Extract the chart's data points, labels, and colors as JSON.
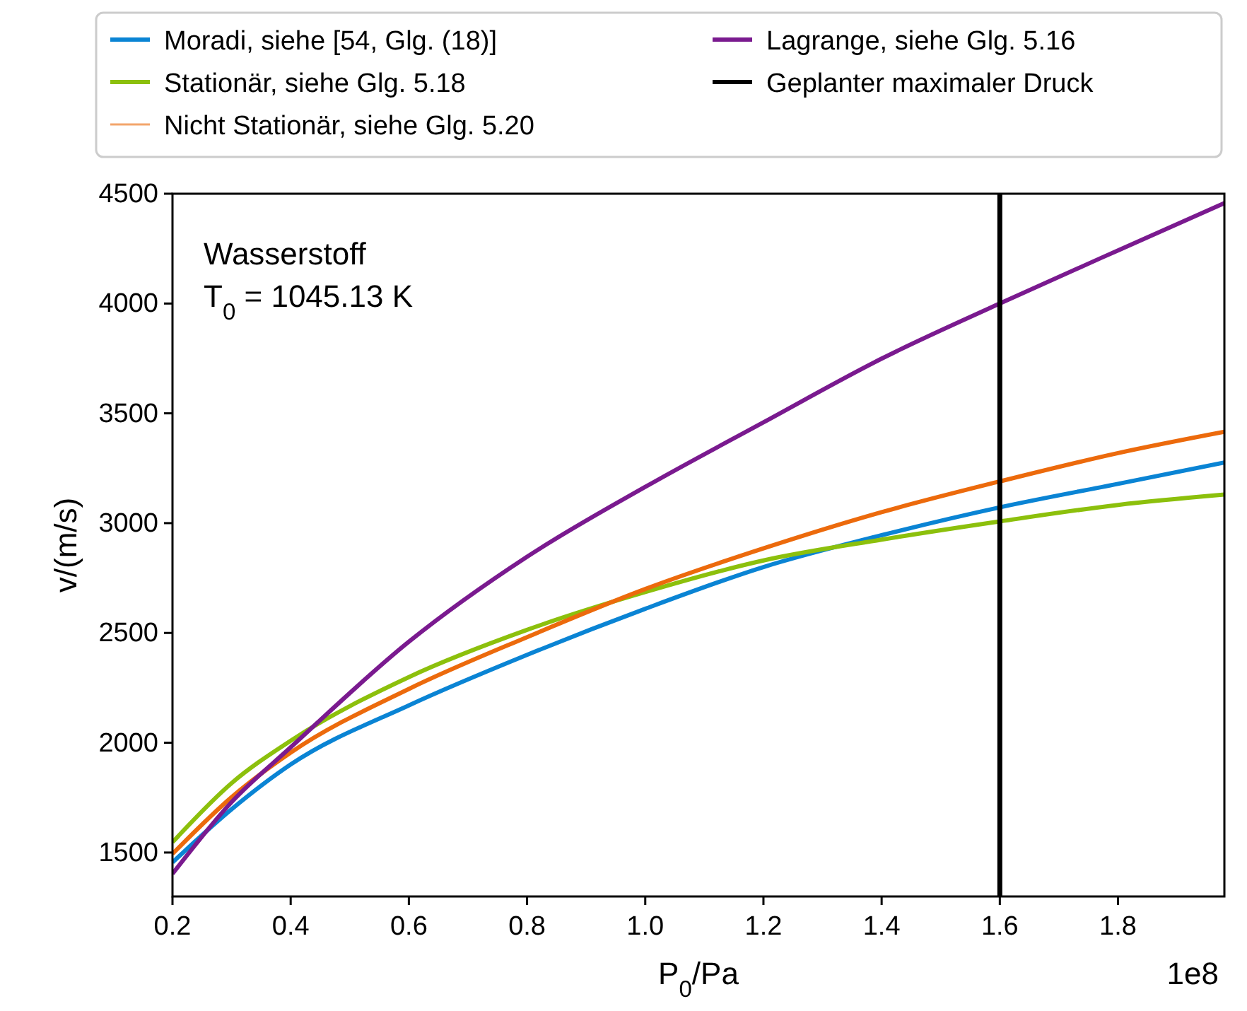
{
  "chart_data": {
    "type": "line",
    "xlabel": "P$_{0}$/Pa",
    "ylabel": "v/(m/s)",
    "x": [
      0.2,
      0.3,
      0.4,
      0.6,
      0.8,
      1.0,
      1.2,
      1.4,
      1.6,
      1.8,
      1.98
    ],
    "series": [
      {
        "name": "Moradi, siehe [54, Glg. (18)]",
        "color": "#0a84d4",
        "values": [
          1455,
          1697,
          1901,
          2170,
          2400,
          2610,
          2800,
          2945,
          3072,
          3179,
          3276
        ]
      },
      {
        "name": "Stationär, siehe Glg. 5.18",
        "color": "#8cc00c",
        "values": [
          1547,
          1816,
          2009,
          2299,
          2514,
          2686,
          2830,
          2925,
          3008,
          3083,
          3130
        ]
      },
      {
        "name": "Nicht Stationär, siehe Glg. 5.20",
        "color": "#ec6a0c",
        "values": [
          1494,
          1752,
          1955,
          2245,
          2481,
          2700,
          2885,
          3050,
          3190,
          3319,
          3416
        ]
      },
      {
        "name": "Lagrange, siehe Glg. 5.16",
        "color": "#7a1a8f",
        "values": [
          1403,
          1730,
          1979,
          2460,
          2847,
          3165,
          3459,
          3749,
          4000,
          4242,
          4457
        ]
      }
    ],
    "ref_lines": [
      {
        "axis": "x",
        "value": 1.6,
        "label": "Geplanter maximaler Druck",
        "color": "#000000"
      }
    ],
    "xlim": [
      0.2,
      1.98
    ],
    "ylim": [
      1300,
      4500
    ],
    "xticks": [
      0.2,
      0.4,
      0.6,
      0.8,
      {
        "value": 1,
        "label": "1.0"
      },
      1.2,
      1.4,
      1.6,
      1.8
    ],
    "yticks": [
      1500,
      2000,
      2500,
      3000,
      3500,
      4000,
      4500
    ],
    "annotations": [
      "Wasserstoff",
      "T$_{0}$ = 1045.13 K",
      "1e8"
    ],
    "legend": "top",
    "grid": false,
    "marker": "none",
    "line_style": "solid"
  }
}
